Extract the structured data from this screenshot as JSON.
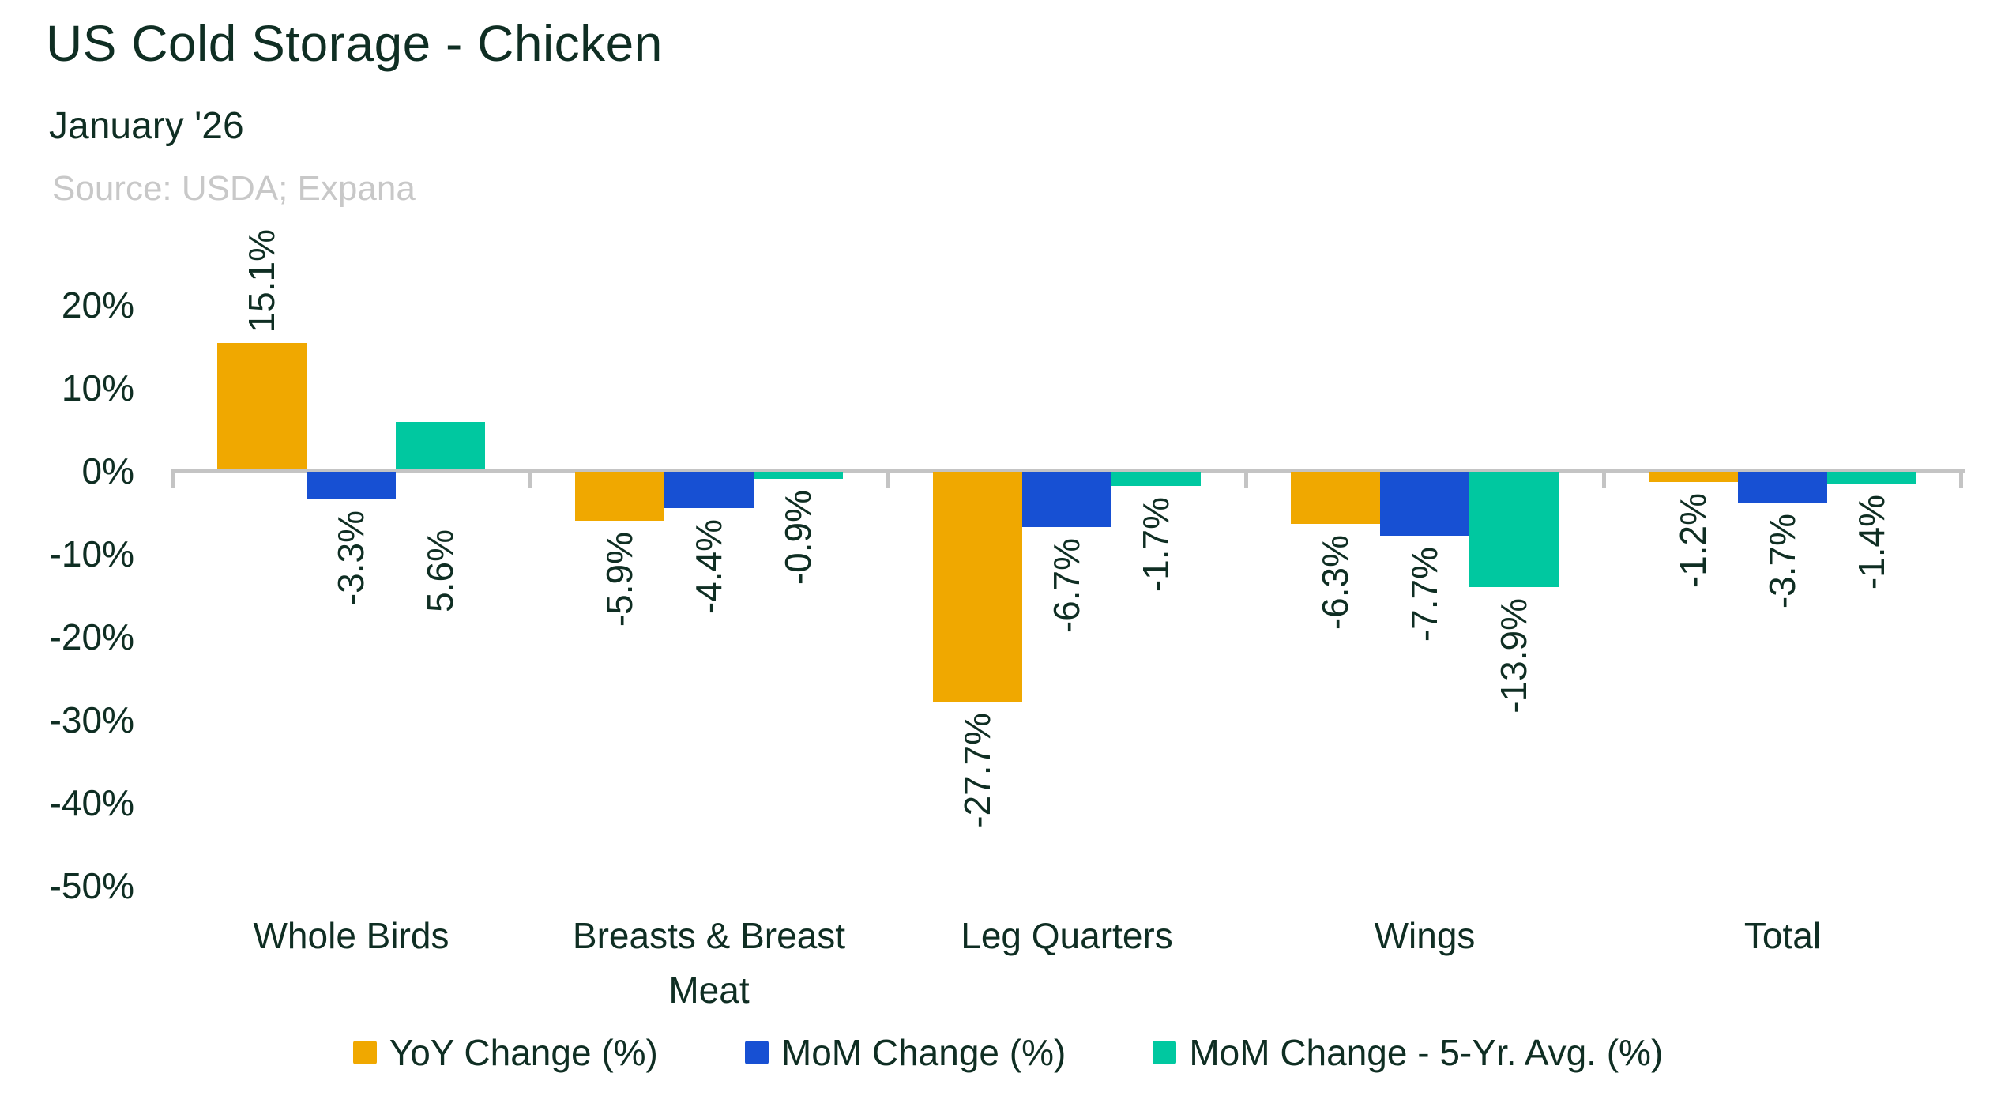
{
  "chart_data": {
    "type": "bar",
    "title": "US Cold Storage - Chicken",
    "subtitle": "January '26",
    "source": "Source: USDA; Expana",
    "categories": [
      "Whole Birds",
      "Breasts & Breast Meat",
      "Leg Quarters",
      "Wings",
      "Total"
    ],
    "series": [
      {
        "name": "YoY Change (%)",
        "color": "#F0A800",
        "values": [
          15.1,
          -5.9,
          -27.7,
          -6.3,
          -1.2
        ],
        "labels": [
          "15.1%",
          "-5.9%",
          "-27.7%",
          "-6.3%",
          "-1.2%"
        ]
      },
      {
        "name": "MoM Change (%)",
        "color": "#1750D3",
        "values": [
          -3.3,
          -4.4,
          -6.7,
          -7.7,
          -3.7
        ],
        "labels": [
          "-3.3%",
          "-4.4%",
          "-6.7%",
          "-7.7%",
          "-3.7%"
        ]
      },
      {
        "name": "MoM Change - 5-Yr. Avg. (%)",
        "color": "#00C8A0",
        "values": [
          5.6,
          -0.9,
          -1.7,
          -13.9,
          -1.4
        ],
        "labels": [
          "5.6%",
          "-0.9%",
          "-1.7%",
          "-13.9%",
          "-1.4%"
        ]
      }
    ],
    "yaxis": {
      "ticks": [
        {
          "label": "20%",
          "value": 20
        },
        {
          "label": "10%",
          "value": 10
        },
        {
          "label": "0%",
          "value": 0
        },
        {
          "label": "-10%",
          "value": -10
        },
        {
          "label": "-20%",
          "value": -20
        },
        {
          "label": "-30%",
          "value": -30
        },
        {
          "label": "-40%",
          "value": -40
        },
        {
          "label": "-50%",
          "value": -50
        }
      ],
      "ylim": [
        -50,
        20
      ]
    },
    "legend_position": "bottom",
    "grid": false,
    "colors": {
      "text_dark": "#0F2E23",
      "axis_gray": "#C4C4C4",
      "source_gray": "#C8C8C8"
    }
  }
}
